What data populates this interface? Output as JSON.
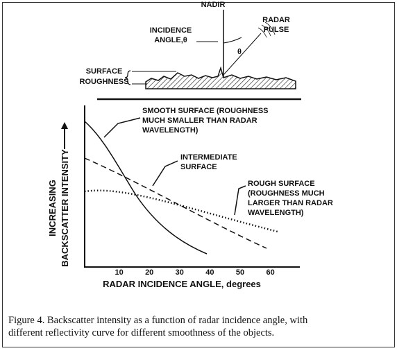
{
  "illustration": {
    "nadir": "NADIR",
    "radar_pulse": [
      "RADAR",
      "PULSE"
    ],
    "incidence_angle": [
      "INCIDENCE",
      "ANGLE,θ"
    ],
    "theta": "θ",
    "surface_roughness": [
      "SURFACE",
      "ROUGHNESS"
    ]
  },
  "graph": {
    "y_axis_title": [
      "INCREASING",
      "BACKSCATTER INTENSITY"
    ],
    "x_axis_title": "RADAR INCIDENCE ANGLE, degrees",
    "x_ticks": [
      10,
      20,
      30,
      40,
      50,
      60
    ],
    "curves": {
      "smooth": [
        "SMOOTH SURFACE (ROUGHNESS",
        "MUCH SMALLER THAN RADAR",
        "WAVELENGTH)"
      ],
      "intermediate": [
        "INTERMEDIATE",
        "SURFACE"
      ],
      "rough": [
        "ROUGH SURFACE",
        "(ROUGHNESS MUCH",
        "LARGER THAN RADAR",
        "WAVELENGTH)"
      ]
    }
  },
  "caption": [
    "Figure 4. Backscatter intensity as a function of radar incidence angle, with",
    "different reflectivity curve for  different smoothness of the objects."
  ]
}
